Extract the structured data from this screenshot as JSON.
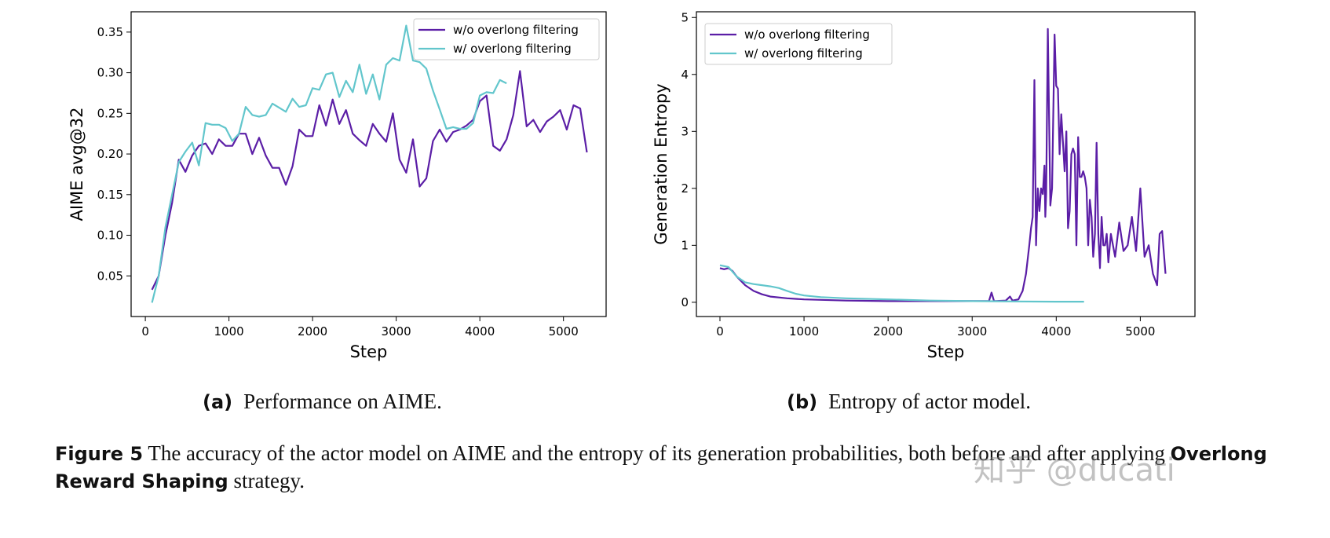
{
  "chart_data": [
    {
      "type": "line",
      "xlabel": "Step",
      "ylabel": "AIME avg@32",
      "xlim": [
        -170,
        5510
      ],
      "ylim": [
        0.0,
        0.375
      ],
      "xticks": [
        0,
        1000,
        2000,
        3000,
        4000,
        5000
      ],
      "yticks": [
        0.05,
        0.1,
        0.15,
        0.2,
        0.25,
        0.3,
        0.35
      ],
      "ytick_labels": [
        "0.05",
        "0.10",
        "0.15",
        "0.20",
        "0.25",
        "0.30",
        "0.35"
      ],
      "grid": false,
      "legend": "top-right",
      "series": [
        {
          "name": "w/o overlong filtering",
          "color": "#5b1ea6",
          "x": [
            80,
            160,
            240,
            320,
            400,
            480,
            560,
            640,
            720,
            800,
            880,
            960,
            1040,
            1120,
            1200,
            1280,
            1360,
            1440,
            1520,
            1600,
            1680,
            1760,
            1840,
            1920,
            2000,
            2080,
            2160,
            2240,
            2320,
            2400,
            2480,
            2560,
            2640,
            2720,
            2800,
            2880,
            2960,
            3040,
            3120,
            3200,
            3280,
            3360,
            3440,
            3520,
            3600,
            3680,
            3760,
            3840,
            3920,
            4000,
            4080,
            4160,
            4240,
            4320,
            4400,
            4480,
            4560,
            4640,
            4720,
            4800,
            4880,
            4960,
            5040,
            5120,
            5200,
            5280
          ],
          "y": [
            0.033,
            0.05,
            0.1,
            0.14,
            0.193,
            0.178,
            0.198,
            0.21,
            0.213,
            0.2,
            0.218,
            0.21,
            0.21,
            0.225,
            0.225,
            0.2,
            0.22,
            0.198,
            0.183,
            0.183,
            0.162,
            0.185,
            0.23,
            0.222,
            0.222,
            0.26,
            0.235,
            0.267,
            0.237,
            0.254,
            0.225,
            0.217,
            0.21,
            0.237,
            0.225,
            0.215,
            0.25,
            0.193,
            0.177,
            0.218,
            0.16,
            0.17,
            0.216,
            0.23,
            0.215,
            0.227,
            0.23,
            0.235,
            0.242,
            0.265,
            0.272,
            0.21,
            0.204,
            0.218,
            0.248,
            0.302,
            0.234,
            0.242,
            0.227,
            0.24,
            0.246,
            0.254,
            0.23,
            0.26,
            0.256,
            0.202
          ]
        },
        {
          "name": "w/ overlong filtering",
          "color": "#62c6cc",
          "x": [
            80,
            160,
            240,
            320,
            400,
            480,
            560,
            640,
            720,
            800,
            880,
            960,
            1040,
            1120,
            1200,
            1280,
            1360,
            1440,
            1520,
            1600,
            1680,
            1760,
            1840,
            1920,
            2000,
            2080,
            2160,
            2240,
            2320,
            2400,
            2480,
            2560,
            2640,
            2720,
            2800,
            2880,
            2960,
            3040,
            3120,
            3200,
            3280,
            3360,
            3440,
            3520,
            3600,
            3680,
            3760,
            3840,
            3920,
            4000,
            4080,
            4160,
            4240,
            4320
          ],
          "y": [
            0.017,
            0.05,
            0.11,
            0.15,
            0.19,
            0.203,
            0.214,
            0.186,
            0.238,
            0.236,
            0.236,
            0.232,
            0.216,
            0.225,
            0.258,
            0.248,
            0.246,
            0.248,
            0.262,
            0.257,
            0.252,
            0.268,
            0.258,
            0.26,
            0.281,
            0.279,
            0.298,
            0.3,
            0.27,
            0.29,
            0.276,
            0.31,
            0.274,
            0.298,
            0.267,
            0.31,
            0.318,
            0.315,
            0.358,
            0.315,
            0.313,
            0.305,
            0.278,
            0.255,
            0.231,
            0.233,
            0.231,
            0.231,
            0.238,
            0.272,
            0.276,
            0.275,
            0.291,
            0.287
          ]
        }
      ]
    },
    {
      "type": "line",
      "xlabel": "Step",
      "ylabel": "Generation Entropy",
      "xlim": [
        -280,
        5650
      ],
      "ylim": [
        -0.25,
        5.1
      ],
      "xticks": [
        0,
        1000,
        2000,
        3000,
        4000,
        5000
      ],
      "yticks": [
        0,
        1,
        2,
        3,
        4,
        5
      ],
      "ytick_labels": [
        "0",
        "1",
        "2",
        "3",
        "4",
        "5"
      ],
      "grid": false,
      "legend": "top-left",
      "series": [
        {
          "name": "w/o overlong filtering",
          "color": "#5b1ea6",
          "x": [
            0,
            50,
            100,
            150,
            200,
            300,
            400,
            500,
            600,
            800,
            1000,
            1500,
            2000,
            2500,
            3000,
            3200,
            3230,
            3260,
            3400,
            3450,
            3480,
            3550,
            3600,
            3640,
            3680,
            3700,
            3720,
            3740,
            3760,
            3780,
            3800,
            3820,
            3840,
            3860,
            3870,
            3880,
            3900,
            3930,
            3950,
            3980,
            4000,
            4020,
            4040,
            4060,
            4080,
            4100,
            4120,
            4140,
            4160,
            4180,
            4200,
            4220,
            4240,
            4260,
            4280,
            4300,
            4320,
            4340,
            4360,
            4380,
            4400,
            4420,
            4440,
            4460,
            4480,
            4500,
            4520,
            4540,
            4560,
            4580,
            4600,
            4620,
            4650,
            4700,
            4750,
            4800,
            4850,
            4900,
            4950,
            5000,
            5050,
            5100,
            5150,
            5200,
            5230,
            5260,
            5300
          ],
          "y": [
            0.6,
            0.58,
            0.6,
            0.55,
            0.45,
            0.3,
            0.2,
            0.14,
            0.1,
            0.07,
            0.05,
            0.03,
            0.02,
            0.02,
            0.02,
            0.02,
            0.17,
            0.02,
            0.03,
            0.1,
            0.03,
            0.05,
            0.2,
            0.5,
            1.0,
            1.3,
            1.5,
            3.9,
            1.0,
            2.0,
            1.6,
            2.0,
            1.9,
            2.4,
            1.5,
            1.9,
            4.8,
            1.7,
            2.0,
            4.7,
            3.8,
            3.75,
            2.6,
            3.3,
            2.8,
            2.3,
            3.0,
            1.3,
            1.6,
            2.6,
            2.7,
            2.6,
            1.0,
            2.9,
            2.2,
            2.2,
            2.3,
            2.2,
            2.0,
            1.0,
            1.8,
            1.5,
            0.8,
            1.2,
            2.8,
            1.2,
            0.6,
            1.5,
            1.0,
            1.0,
            1.2,
            0.7,
            1.2,
            0.8,
            1.4,
            0.9,
            1.0,
            1.5,
            0.9,
            2.0,
            0.8,
            1.0,
            0.5,
            0.3,
            1.2,
            1.25,
            0.5
          ]
        },
        {
          "name": "w/ overlong filtering",
          "color": "#62c6cc",
          "x": [
            0,
            100,
            200,
            300,
            400,
            500,
            600,
            700,
            800,
            900,
            1000,
            1200,
            1500,
            2000,
            2500,
            3000,
            3500,
            4000,
            4330
          ],
          "y": [
            0.65,
            0.62,
            0.45,
            0.35,
            0.32,
            0.3,
            0.28,
            0.25,
            0.2,
            0.15,
            0.12,
            0.09,
            0.07,
            0.05,
            0.03,
            0.02,
            0.015,
            0.01,
            0.01
          ]
        }
      ]
    }
  ],
  "subcaptions": [
    {
      "label": "(a)",
      "text": "Performance on AIME."
    },
    {
      "label": "(b)",
      "text": "Entropy of actor model."
    }
  ],
  "caption": {
    "label": "Figure 5",
    "text1": " The accuracy of the actor model on AIME and the entropy of its generation probabilities, both before and after applying ",
    "bold": "Overlong Reward Shaping",
    "text2": " strategy."
  },
  "watermark": "知乎 @ducati"
}
